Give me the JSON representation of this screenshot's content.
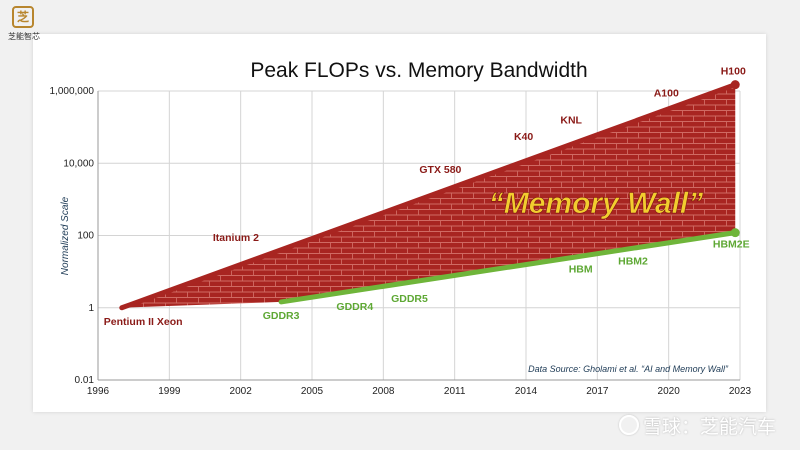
{
  "branding": {
    "logo_icon": "chip-icon",
    "logo_glyph": "芝",
    "logo_text": "芝能智芯",
    "watermark_icon": "snowball-icon",
    "watermark_text": "雪球：芝能汽车"
  },
  "chart_data": {
    "type": "line",
    "title": "Peak FLOPs vs. Memory Bandwidth",
    "ylabel": "Normalized Scale",
    "xlabel": "",
    "yscale": "log",
    "xlim": [
      1996,
      2023
    ],
    "ylim": [
      0.01,
      1000000
    ],
    "x_ticks": [
      "1996",
      "1999",
      "2002",
      "2005",
      "2008",
      "2011",
      "2014",
      "2017",
      "2020",
      "2023"
    ],
    "y_ticks": [
      {
        "value": 0.01,
        "label": "0.01"
      },
      {
        "value": 1,
        "label": "1"
      },
      {
        "value": 100,
        "label": "100"
      },
      {
        "value": 10000,
        "label": "10,000"
      },
      {
        "value": 1000000,
        "label": "1,000,000"
      }
    ],
    "grid": true,
    "annotation": "“Memory Wall”",
    "source_note": "Data Source: Gholami et al. “AI and Memory Wall”",
    "series": [
      {
        "color": "#a82521",
        "points": [
          {
            "x": 1997,
            "y": 1,
            "label": "Pentium II Xeon"
          },
          {
            "x": 2001.8,
            "y": 40,
            "label": "Itanium 2"
          },
          {
            "x": 2010.4,
            "y": 3000,
            "label": "GTX 580"
          },
          {
            "x": 2013.9,
            "y": 25000,
            "label": "K40"
          },
          {
            "x": 2015.9,
            "y": 70000,
            "label": "KNL"
          },
          {
            "x": 2019.9,
            "y": 400000,
            "label": "A100"
          },
          {
            "x": 2022.8,
            "y": 1500000,
            "label": "H100"
          }
        ]
      },
      {
        "color": "#6fb53a",
        "points": [
          {
            "x": 2003.7,
            "y": 1.45,
            "label": "GDDR3"
          },
          {
            "x": 2006.8,
            "y": 2.6,
            "label": "GDDR4"
          },
          {
            "x": 2009.1,
            "y": 4.2,
            "label": "GDDR5"
          },
          {
            "x": 2016.3,
            "y": 28,
            "label": "HBM"
          },
          {
            "x": 2018.5,
            "y": 46,
            "label": "HBM2"
          },
          {
            "x": 2022.8,
            "y": 120,
            "label": "HBM2E"
          }
        ]
      }
    ],
    "colors": {
      "compute": "#a82521",
      "bandwidth": "#6fb53a",
      "wall_brick": "#a82521",
      "annotation": "#f2cd2f",
      "label_compute": "#8a1a17",
      "label_bandwidth": "#5ea834"
    }
  }
}
